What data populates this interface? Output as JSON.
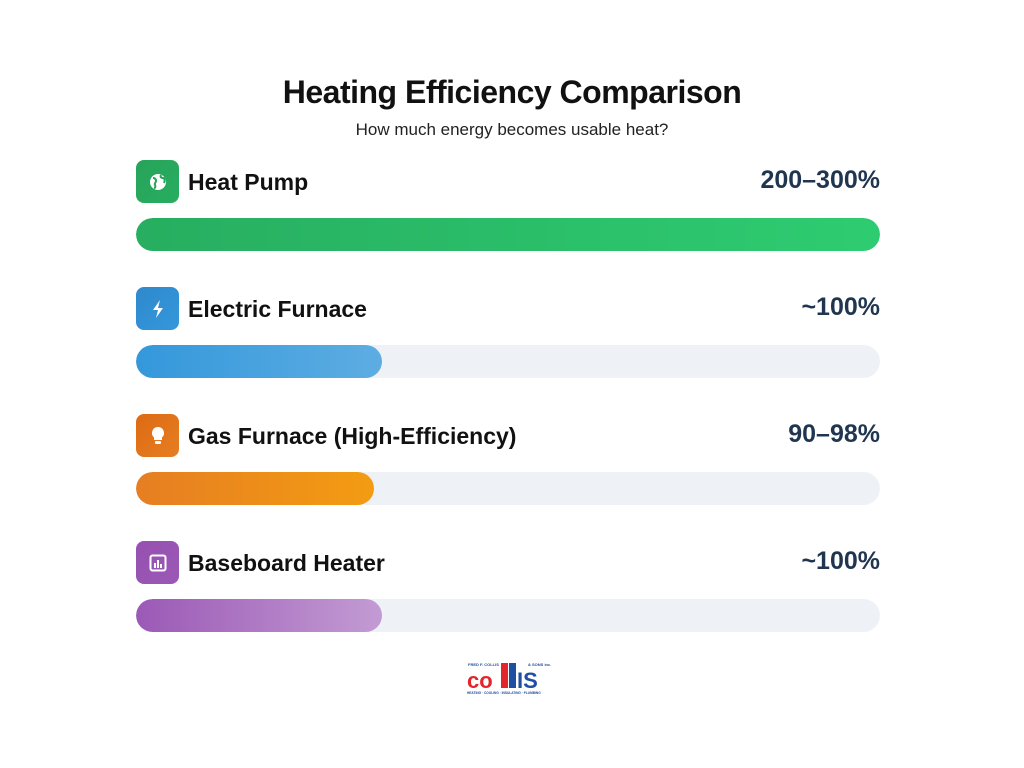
{
  "title": "Heating Efficiency Comparison",
  "subtitle": "How much energy becomes usable heat?",
  "items": [
    {
      "label": "Heat Pump",
      "value": "200–300%",
      "fill": 1.0,
      "icon": "globe-icon",
      "color_start": "#27ae60",
      "color_end": "#2ecc71",
      "icon_color": "#27a35a"
    },
    {
      "label": "Electric Furnace",
      "value": "~100%",
      "fill": 0.33,
      "icon": "lightning-icon",
      "color_start": "#3498db",
      "color_end": "#5dade2",
      "icon_color": "#2f88cc"
    },
    {
      "label": "Gas Furnace (High-Efficiency)",
      "value": "90–98%",
      "fill": 0.32,
      "icon": "lightbulb-icon",
      "color_start": "#e67e22",
      "color_end": "#f39c12",
      "icon_color": "#dd6a14"
    },
    {
      "label": "Baseboard Heater",
      "value": "~100%",
      "fill": 0.33,
      "icon": "chart-icon",
      "color_start": "#9b59b6",
      "color_end": "#c39bd3",
      "icon_color": "#9650b0"
    }
  ],
  "logo": {
    "top": "FRED F. COLLIS & SONS inc.",
    "main": "COLLIS",
    "tagline": "HEATING · COOLING · INSULATING · PLUMBING"
  }
}
